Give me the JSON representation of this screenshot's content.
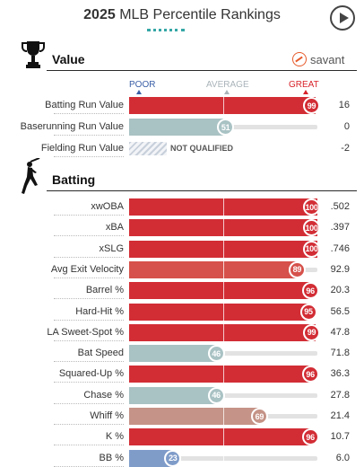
{
  "header": {
    "year": "2025",
    "title": "MLB Percentile Rankings"
  },
  "brand": "savant",
  "scale": {
    "poor": "POOR",
    "average": "AVERAGE",
    "great": "GREAT"
  },
  "colors": {
    "poor": "#3a5fa6",
    "average": "#aab4b9",
    "great": "#d8232a",
    "bar_great": "#d22d35",
    "bar_good": "#d6514b",
    "bar_mild": "#c59387",
    "bar_neutral": "#a9c2c4",
    "bar_poor": "#7f9cc9",
    "track": "#e2e2e2"
  },
  "value_section": {
    "title": "Value",
    "rows": [
      {
        "label": "Batting Run Value",
        "percentile": 99,
        "pct_label": "99",
        "value": "16",
        "color": "#d22d35"
      },
      {
        "label": "Baserunning Run Value",
        "percentile": 51,
        "pct_label": "51",
        "value": "0",
        "color": "#a9c2c4"
      },
      {
        "label": "Fielding Run Value",
        "not_qualified": "NOT QUALIFIED",
        "value": "-2"
      }
    ]
  },
  "batting_section": {
    "title": "Batting",
    "rows": [
      {
        "label": "xwOBA",
        "percentile": 100,
        "pct_label": "100",
        "value": ".502",
        "color": "#d22d35"
      },
      {
        "label": "xBA",
        "percentile": 100,
        "pct_label": "100",
        "value": ".397",
        "color": "#d22d35"
      },
      {
        "label": "xSLG",
        "percentile": 100,
        "pct_label": "100",
        "value": ".746",
        "color": "#d22d35"
      },
      {
        "label": "Avg Exit Velocity",
        "percentile": 89,
        "pct_label": "89",
        "value": "92.9",
        "color": "#d6514b"
      },
      {
        "label": "Barrel %",
        "percentile": 96,
        "pct_label": "96",
        "value": "20.3",
        "color": "#d22d35"
      },
      {
        "label": "Hard-Hit %",
        "percentile": 95,
        "pct_label": "95",
        "value": "56.5",
        "color": "#d22d35"
      },
      {
        "label": "LA Sweet-Spot %",
        "percentile": 99,
        "pct_label": "99",
        "value": "47.8",
        "color": "#d22d35"
      },
      {
        "label": "Bat Speed",
        "percentile": 46,
        "pct_label": "46",
        "value": "71.8",
        "color": "#a9c2c4"
      },
      {
        "label": "Squared-Up %",
        "percentile": 96,
        "pct_label": "96",
        "value": "36.3",
        "color": "#d22d35"
      },
      {
        "label": "Chase %",
        "percentile": 46,
        "pct_label": "46",
        "value": "27.8",
        "color": "#a9c2c4"
      },
      {
        "label": "Whiff %",
        "percentile": 69,
        "pct_label": "69",
        "value": "21.4",
        "color": "#c59387"
      },
      {
        "label": "K %",
        "percentile": 96,
        "pct_label": "96",
        "value": "10.7",
        "color": "#d22d35"
      },
      {
        "label": "BB %",
        "percentile": 23,
        "pct_label": "23",
        "value": "6.0",
        "color": "#7f9cc9"
      }
    ]
  }
}
